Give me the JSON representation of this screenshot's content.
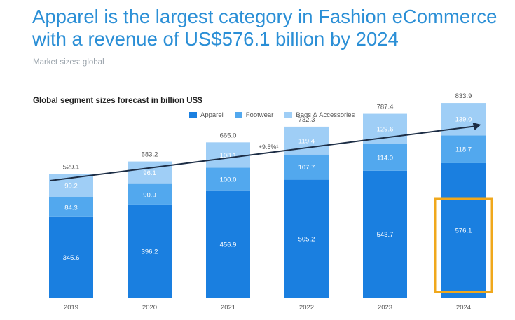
{
  "header": {
    "title_line1": "Apparel is the largest category in Fashion eCommerce",
    "title_line2": "with a revenue of US$576.1 billion by 2024",
    "subtitle": "Market sizes: global"
  },
  "chart_data": {
    "type": "bar",
    "stacked": true,
    "title": "Global segment sizes forecast in billion US$",
    "categories": [
      "2019",
      "2020",
      "2021",
      "2022",
      "2023",
      "2024"
    ],
    "series": [
      {
        "name": "Apparel",
        "color": "#1a7fe0",
        "values": [
          345.6,
          396.2,
          456.9,
          505.2,
          543.7,
          576.1
        ],
        "labels": [
          "345.6",
          "396.2",
          "456.9",
          "505.2",
          "543.7",
          "576.1"
        ]
      },
      {
        "name": "Footwear",
        "color": "#52a8ee",
        "values": [
          84.3,
          90.9,
          100.0,
          107.7,
          114.0,
          118.7
        ],
        "labels": [
          "84.3",
          "90.9",
          "100.0",
          "107.7",
          "114.0",
          "118.7"
        ]
      },
      {
        "name": "Bags & Accessories",
        "color": "#9fcef6",
        "values": [
          99.2,
          96.1,
          108.1,
          119.4,
          129.6,
          139.0
        ],
        "labels": [
          "99.2",
          "96.1",
          "108.1",
          "119.4",
          "129.6",
          "139.0"
        ]
      }
    ],
    "totals": [
      529.1,
      583.2,
      665.0,
      732.3,
      787.4,
      833.9
    ],
    "total_labels": [
      "529.1",
      "583.2",
      "665.0",
      "732.3",
      "787.4",
      "833.9"
    ],
    "ylim": [
      0,
      900
    ],
    "grid": false,
    "legend_position": "top",
    "trend_annotation": "+9.5%¹",
    "highlight_category": "2024",
    "highlight_color": "#f0a81c"
  }
}
